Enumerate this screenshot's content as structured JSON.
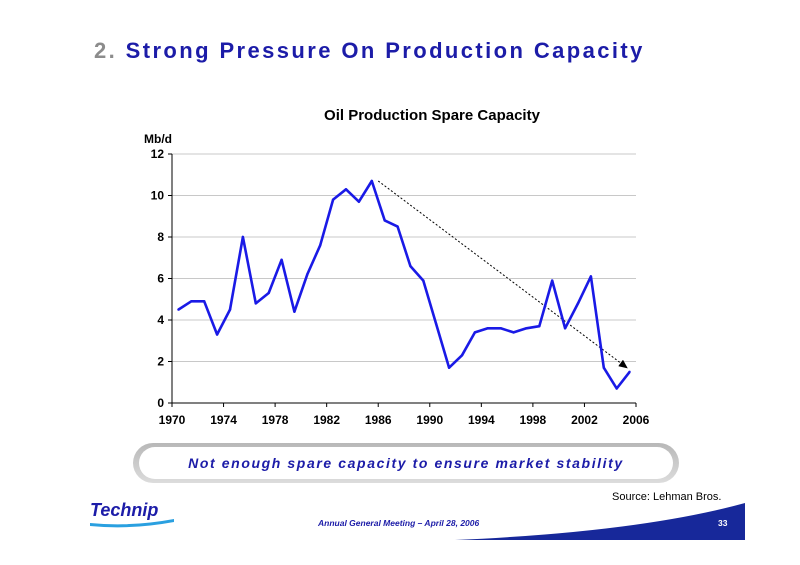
{
  "slide": {
    "number": "2.",
    "title": "Strong Pressure On Production Capacity",
    "callout": "Not enough spare capacity to ensure market stability",
    "source": "Source: Lehman Bros.",
    "footer": "Annual General Meeting – April 28, 2006",
    "page": "33",
    "logo_text": "Technip"
  },
  "colors": {
    "accent": "#1c1ca8",
    "line": "#1a1ae6",
    "grid": "#c8c8c8",
    "band": "#17289a"
  },
  "chart_data": {
    "type": "line",
    "title": "Oil Production Spare Capacity",
    "ylabel": "Mb/d",
    "xlabel": "",
    "xlim": [
      1970,
      2006
    ],
    "ylim": [
      0,
      12
    ],
    "x_ticks": [
      1970,
      1974,
      1978,
      1982,
      1986,
      1990,
      1994,
      1998,
      2002,
      2006
    ],
    "y_ticks": [
      0,
      2,
      4,
      6,
      8,
      10,
      12
    ],
    "grid": true,
    "legend": "none",
    "series": [
      {
        "x": [
          1970.5,
          1971.5,
          1972.5,
          1973.5,
          1974.5,
          1975.5,
          1976.5,
          1977.5,
          1978.5,
          1979.5,
          1980.5,
          1981.5,
          1982.5,
          1983.5,
          1984.5,
          1985.5,
          1986.5,
          1987.5,
          1988.5,
          1989.5,
          1990.5,
          1991.5,
          1992.5,
          1993.5,
          1994.5,
          1995.5,
          1996.5,
          1997.5,
          1998.5,
          1999.5,
          2000.5,
          2001.5,
          2002.5,
          2003.5,
          2004.5,
          2005.5
        ],
        "values": [
          4.5,
          4.9,
          4.9,
          3.3,
          4.5,
          8.0,
          4.8,
          5.3,
          6.9,
          4.4,
          6.2,
          7.6,
          9.8,
          10.3,
          9.7,
          10.7,
          8.8,
          8.5,
          6.6,
          5.9,
          3.8,
          1.7,
          2.3,
          3.4,
          3.6,
          3.6,
          3.4,
          3.6,
          3.7,
          5.9,
          3.6,
          4.8,
          6.1,
          1.7,
          0.7,
          1.5
        ]
      }
    ],
    "annotations": [
      {
        "type": "trend-arrow",
        "x0": 1986,
        "y0": 10.7,
        "x1": 2005.3,
        "y1": 1.7
      }
    ]
  }
}
